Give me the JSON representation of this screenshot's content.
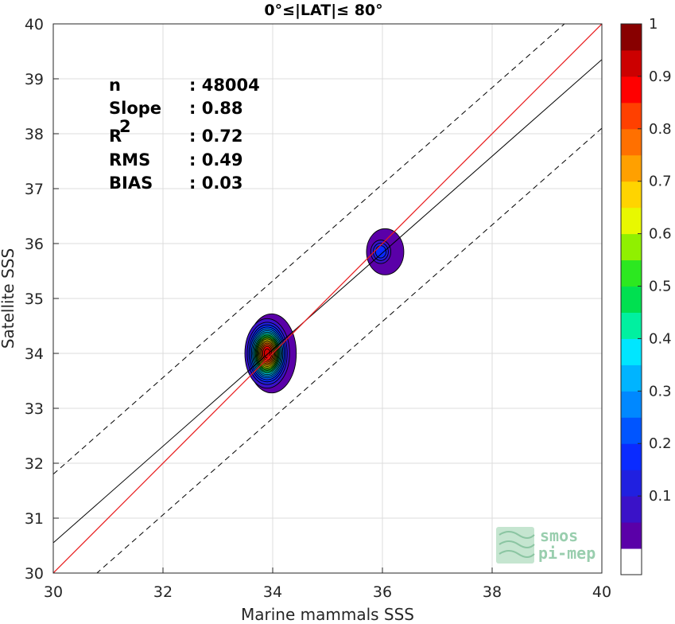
{
  "chart_data": {
    "type": "heatmap",
    "title": "0°≤|LAT|≤ 80°",
    "xlabel": "Marine mammals SSS",
    "ylabel": "Satellite SSS",
    "xlim": [
      30,
      40
    ],
    "ylim": [
      30,
      40
    ],
    "xticks": [
      "30",
      "32",
      "34",
      "36",
      "38",
      "40"
    ],
    "yticks": [
      "30",
      "31",
      "32",
      "33",
      "34",
      "35",
      "36",
      "37",
      "38",
      "39",
      "40"
    ],
    "grid": true,
    "stats": [
      {
        "label": "n",
        "sep": ": ",
        "value": "48004"
      },
      {
        "label": "Slope",
        "sep": ": ",
        "value": "0.88"
      },
      {
        "label": "R",
        "sup": "2",
        "sep": ": ",
        "value": "0.72"
      },
      {
        "label": "RMS",
        "sep": ": ",
        "value": "0.49"
      },
      {
        "label": "BIAS",
        "sep": ": ",
        "value": "0.03"
      }
    ],
    "lines": {
      "identity": {
        "color": "#e8191b",
        "x": [
          30,
          40
        ],
        "y": [
          30,
          40
        ]
      },
      "regression": {
        "color": "#000000",
        "x": [
          30,
          40
        ],
        "y": [
          30.55,
          39.35
        ]
      },
      "upper_bound": {
        "style": "dashed",
        "x": [
          30,
          40
        ],
        "y": [
          31.8,
          40.6
        ]
      },
      "lower_bound": {
        "style": "dashed",
        "x": [
          30,
          40
        ],
        "y": [
          29.3,
          38.1
        ]
      }
    },
    "density_clusters": [
      {
        "center_x": 33.9,
        "center_y": 34.0,
        "peak": 0.97,
        "sigma_x": 0.18,
        "sigma_y": 0.28,
        "halo_x": 0.45,
        "halo_y": 0.72
      },
      {
        "center_x": 35.97,
        "center_y": 35.85,
        "peak": 0.24,
        "sigma_x": 0.12,
        "sigma_y": 0.14,
        "halo_x": 0.34,
        "halo_y": 0.42
      }
    ],
    "colorbar": {
      "range": [
        0,
        1
      ],
      "levels": 20,
      "ticks": [
        "0.1",
        "0.2",
        "0.3",
        "0.4",
        "0.5",
        "0.6",
        "0.7",
        "0.8",
        "0.9",
        "1"
      ],
      "colors": [
        "#ffffff",
        "#5a00a8",
        "#3a12c8",
        "#2020e0",
        "#0a2bff",
        "#0055ff",
        "#0088ff",
        "#00b4ff",
        "#00e6ff",
        "#00f0a0",
        "#00e050",
        "#2ce820",
        "#90f000",
        "#e8f800",
        "#ffd400",
        "#ffa000",
        "#ff7000",
        "#ff4000",
        "#ff0000",
        "#cc0000",
        "#880000"
      ]
    },
    "logo": {
      "line1": "smos",
      "line2": "pi-mep"
    }
  }
}
